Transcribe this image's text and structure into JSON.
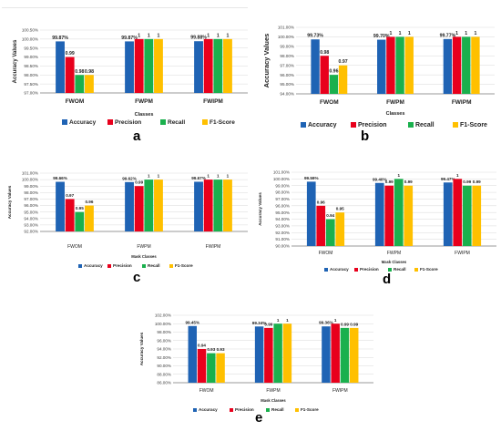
{
  "colors": {
    "accuracy": "#1f63b4",
    "precision": "#e8001c",
    "recall": "#1ab04d",
    "f1": "#ffc000",
    "grid": "#d9d9d9",
    "axis": "#7f7f7f"
  },
  "chart_data": [
    {
      "type": "bar",
      "panel_label": "a",
      "categories": [
        "FWOM",
        "FWPM",
        "FWIPM"
      ],
      "series": [
        {
          "name": "Accuracy",
          "color_key": "accuracy",
          "values": [
            0.9987,
            0.9987,
            0.9988
          ]
        },
        {
          "name": "Precision",
          "color_key": "precision",
          "values": [
            0.99,
            1,
            1
          ]
        },
        {
          "name": "Recall",
          "color_key": "recall",
          "values": [
            0.98,
            1,
            1
          ]
        },
        {
          "name": "F1-Score",
          "color_key": "f1",
          "values": [
            0.98,
            1,
            1
          ]
        }
      ],
      "data_labels": [
        [
          "99.87%",
          "0.99",
          "0.98",
          "0.98"
        ],
        [
          "99.87%",
          "1",
          "1",
          "1"
        ],
        [
          "99.88%",
          "1",
          "1",
          "1"
        ]
      ],
      "xlabel": "Classes",
      "ylabel": "Accuracy Values",
      "ylim": [
        0.97,
        1.005
      ],
      "ytick_values": [
        0.97,
        0.975,
        0.98,
        0.985,
        0.99,
        0.995,
        1.0,
        1.005
      ],
      "yticks": [
        "97.00%",
        "97.50%",
        "98.00%",
        "98.50%",
        "99.00%",
        "99.50%",
        "100.00%",
        "100.50%"
      ],
      "grid": true,
      "legend_position": "bottom"
    },
    {
      "type": "bar",
      "panel_label": "b",
      "categories": [
        "FWOM",
        "FWPM",
        "FWIPM"
      ],
      "series": [
        {
          "name": "Accuracy",
          "color_key": "accuracy",
          "values": [
            0.9973,
            0.997,
            0.9977
          ]
        },
        {
          "name": "Precision",
          "color_key": "precision",
          "values": [
            0.98,
            1,
            1
          ]
        },
        {
          "name": "Recall",
          "color_key": "recall",
          "values": [
            0.96,
            1,
            1
          ]
        },
        {
          "name": "F1-Score",
          "color_key": "f1",
          "values": [
            0.97,
            1,
            1
          ]
        }
      ],
      "data_labels": [
        [
          "99.73%",
          "0.98",
          "0.96",
          "0.97"
        ],
        [
          "99.70%",
          "1",
          "1",
          "1"
        ],
        [
          "99.77%",
          "1",
          "1",
          "1"
        ]
      ],
      "xlabel": "Classes",
      "ylabel": "Accuracy Values",
      "ylim": [
        0.94,
        1.01
      ],
      "ytick_values": [
        0.94,
        0.95,
        0.96,
        0.97,
        0.98,
        0.99,
        1.0,
        1.01
      ],
      "yticks": [
        "94.00%",
        "95.00%",
        "96.00%",
        "97.00%",
        "98.00%",
        "99.00%",
        "100.00%",
        "101.00%"
      ],
      "grid": true,
      "legend_position": "bottom"
    },
    {
      "type": "bar",
      "panel_label": "c",
      "categories": [
        "FWOM",
        "FWPM",
        "FWIPM"
      ],
      "series": [
        {
          "name": "Accuracy",
          "color_key": "accuracy",
          "values": [
            0.9966,
            0.9962,
            0.9967
          ]
        },
        {
          "name": "Precision",
          "color_key": "precision",
          "values": [
            0.97,
            0.99,
            1
          ]
        },
        {
          "name": "Recall",
          "color_key": "recall",
          "values": [
            0.95,
            1,
            1
          ]
        },
        {
          "name": "F1-Score",
          "color_key": "f1",
          "values": [
            0.96,
            1,
            1
          ]
        }
      ],
      "data_labels": [
        [
          "99.66%",
          "0.97",
          "0.95",
          "0.96"
        ],
        [
          "99.62%",
          "0.99",
          "1",
          "1"
        ],
        [
          "99.67%",
          "1",
          "1",
          "1"
        ]
      ],
      "xlabel": "Mask Classes",
      "ylabel": "Accuracy Values",
      "ylim": [
        0.92,
        1.01
      ],
      "ytick_values": [
        0.92,
        0.93,
        0.94,
        0.95,
        0.96,
        0.97,
        0.98,
        0.99,
        1.0,
        1.01
      ],
      "yticks": [
        "92.00%",
        "93.00%",
        "94.00%",
        "95.00%",
        "96.00%",
        "97.00%",
        "98.00%",
        "99.00%",
        "100.00%",
        "101.00%"
      ],
      "grid": true,
      "legend_position": "bottom"
    },
    {
      "type": "bar",
      "panel_label": "d",
      "categories": [
        "FWOM",
        "FWPM",
        "FWIPM"
      ],
      "series": [
        {
          "name": "Accuracy",
          "color_key": "accuracy",
          "values": [
            0.9959,
            0.994,
            0.9947
          ]
        },
        {
          "name": "Precision",
          "color_key": "precision",
          "values": [
            0.96,
            0.99,
            1
          ]
        },
        {
          "name": "Recall",
          "color_key": "recall",
          "values": [
            0.94,
            1,
            0.99
          ]
        },
        {
          "name": "F1-Score",
          "color_key": "f1",
          "values": [
            0.95,
            0.99,
            0.99
          ]
        }
      ],
      "data_labels": [
        [
          "99.59%",
          "0.96",
          "0.94",
          "0.95"
        ],
        [
          "99.40%",
          "0.99",
          "1",
          "0.99"
        ],
        [
          "99.47%",
          "1",
          "0.99",
          "0.99"
        ]
      ],
      "xlabel": "Mask Classes",
      "ylabel": "Accuracy Values",
      "ylim": [
        0.9,
        1.01
      ],
      "ytick_values": [
        0.9,
        0.91,
        0.92,
        0.93,
        0.94,
        0.95,
        0.96,
        0.97,
        0.98,
        0.99,
        1.0,
        1.01
      ],
      "yticks": [
        "90.00%",
        "91.00%",
        "92.00%",
        "93.00%",
        "94.00%",
        "95.00%",
        "96.00%",
        "97.00%",
        "98.00%",
        "99.00%",
        "100.00%",
        "101.00%"
      ],
      "grid": true,
      "legend_position": "bottom"
    },
    {
      "type": "bar",
      "panel_label": "e",
      "categories": [
        "FWOM",
        "FWPM",
        "FWIPM"
      ],
      "series": [
        {
          "name": "Accuracy",
          "color_key": "accuracy",
          "values": [
            0.9945,
            0.9934,
            0.9936
          ]
        },
        {
          "name": "Precision",
          "color_key": "precision",
          "values": [
            0.94,
            0.99,
            1
          ]
        },
        {
          "name": "Recall",
          "color_key": "recall",
          "values": [
            0.93,
            1,
            0.99
          ]
        },
        {
          "name": "F1-Score",
          "color_key": "f1",
          "values": [
            0.93,
            1,
            0.99
          ]
        }
      ],
      "data_labels": [
        [
          "99.45%",
          "0.94",
          "0.93",
          "0.93"
        ],
        [
          "99.34%",
          "0.99",
          "1",
          "1"
        ],
        [
          "99.36%",
          "1",
          "0.99",
          "0.99"
        ]
      ],
      "xlabel": "Mask Classes",
      "ylabel": "Accuracy Values",
      "ylim": [
        0.86,
        1.02
      ],
      "ytick_values": [
        0.86,
        0.88,
        0.9,
        0.92,
        0.94,
        0.96,
        0.98,
        1.0,
        1.02
      ],
      "yticks": [
        "86.00%",
        "88.00%",
        "90.00%",
        "92.00%",
        "94.00%",
        "96.00%",
        "98.00%",
        "100.00%",
        "102.00%"
      ],
      "grid": true,
      "legend_position": "bottom"
    }
  ]
}
